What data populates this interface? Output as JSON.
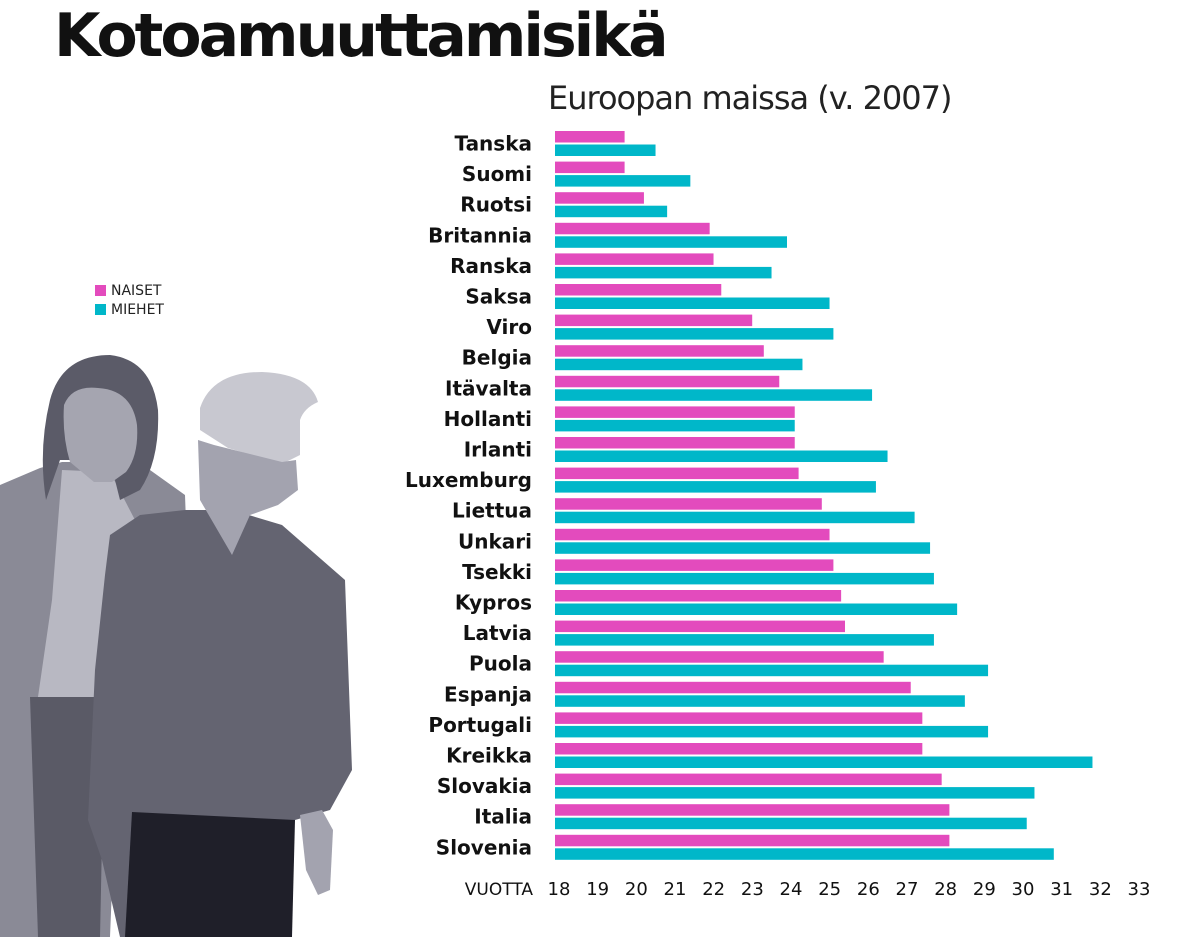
{
  "chart_data": {
    "type": "bar",
    "orientation": "horizontal",
    "title": "Kotoamuuttamisikä",
    "subtitle": "Euroopan maissa (v. 2007)",
    "xlabel": "VUOTTA",
    "xlim": [
      18,
      33
    ],
    "xticks": [
      "18",
      "19",
      "20",
      "21",
      "22",
      "23",
      "24",
      "25",
      "26",
      "27",
      "28",
      "29",
      "30",
      "31",
      "32",
      "33"
    ],
    "grid": false,
    "legend_position": "left",
    "categories": [
      "Tanska",
      "Suomi",
      "Ruotsi",
      "Britannia",
      "Ranska",
      "Saksa",
      "Viro",
      "Belgia",
      "Itävalta",
      "Hollanti",
      "Irlanti",
      "Luxemburg",
      "Liettua",
      "Unkari",
      "Tsekki",
      "Kypros",
      "Latvia",
      "Puola",
      "Espanja",
      "Portugali",
      "Kreikka",
      "Slovakia",
      "Italia",
      "Slovenia"
    ],
    "series": [
      {
        "name": "NAISET",
        "color": "#e34bbd",
        "values": [
          19.8,
          19.8,
          20.3,
          22.0,
          22.1,
          22.3,
          23.1,
          23.4,
          23.8,
          24.2,
          24.2,
          24.3,
          24.9,
          25.1,
          25.2,
          25.4,
          25.5,
          26.5,
          27.2,
          27.5,
          27.5,
          28.0,
          28.2,
          28.2
        ]
      },
      {
        "name": "MIEHET",
        "color": "#00b7c9",
        "values": [
          20.6,
          21.5,
          20.9,
          24.0,
          23.6,
          25.1,
          25.2,
          24.4,
          26.2,
          24.2,
          26.6,
          26.3,
          27.3,
          27.7,
          27.8,
          28.4,
          27.8,
          29.2,
          28.6,
          29.2,
          31.9,
          30.4,
          30.2,
          30.9
        ]
      }
    ]
  },
  "legend": {
    "items": [
      {
        "label": "NAISET",
        "color": "#e34bbd"
      },
      {
        "label": "MIEHET",
        "color": "#00b7c9"
      }
    ]
  },
  "illustration": {
    "name": "two-people-silhouettes",
    "colors": {
      "hair_woman": "#5b5b68",
      "skin_woman": "#a5a5b0",
      "shirt_woman": "#b8b8c2",
      "jacket_woman": "#8a8a96",
      "pants_woman": "#5a5a66",
      "hair_man": "#c8c8d0",
      "skin_man": "#a3a3af",
      "shirt_man": "#646471",
      "pants_man": "#1f1f29"
    }
  }
}
